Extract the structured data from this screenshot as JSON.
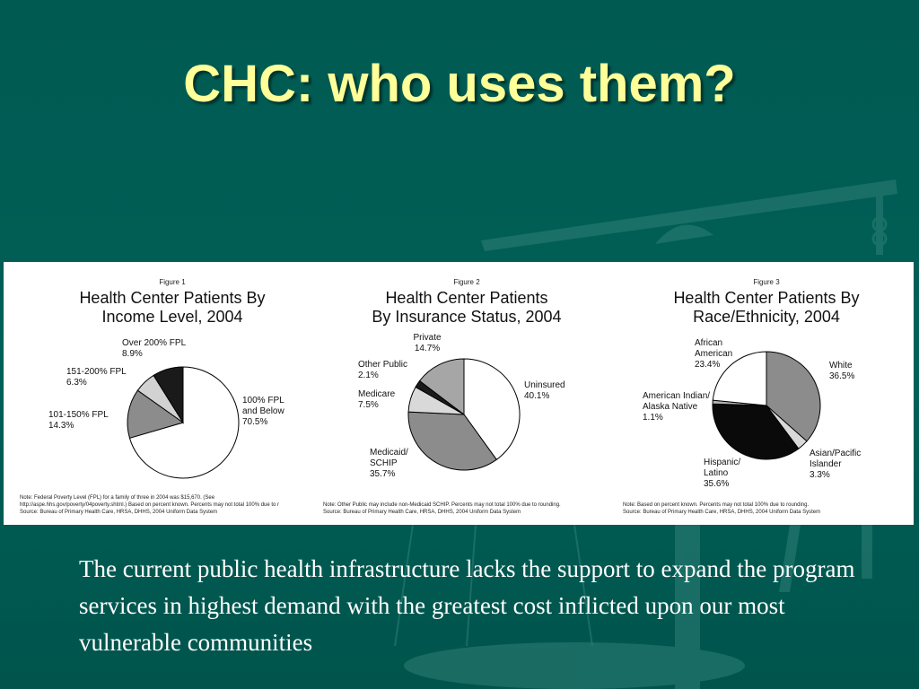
{
  "slide": {
    "title": "CHC: who uses them?",
    "body": "The current public health infrastructure lacks the support to expand the program services in highest demand with the greatest cost inflicted upon our most vulnerable communities"
  },
  "colors": {
    "background": "#006057",
    "title": "#ffff99",
    "body_text": "#ffffff",
    "panel": "#ffffff"
  },
  "chart_data": [
    {
      "type": "pie",
      "figure_label": "Figure 1",
      "title_lines": [
        "Health Center Patients By",
        "Income Level, 2004"
      ],
      "slices": [
        {
          "label_lines": [
            "100% FPL",
            "and Below",
            "70.5%"
          ],
          "value": 70.5,
          "color": "#ffffff"
        },
        {
          "label_lines": [
            "101-150% FPL",
            "14.3%"
          ],
          "value": 14.3,
          "color": "#8c8c8c"
        },
        {
          "label_lines": [
            "151-200% FPL",
            "6.3%"
          ],
          "value": 6.3,
          "color": "#d2d2d2"
        },
        {
          "label_lines": [
            "Over 200% FPL",
            "8.9%"
          ],
          "value": 8.9,
          "color": "#1a1a1a"
        }
      ],
      "notes": [
        "Note: Federal Poverty Level (FPL) for a family of three in 2004 was $15,670. (See",
        "http://aspe.hhs.gov/poverty/04poverty.shtml.) Based on percent known. Percents may not total 100% due to r",
        "Source: Bureau of Primary Health Care, HRSA, DHHS, 2004 Uniform Data System"
      ]
    },
    {
      "type": "pie",
      "figure_label": "Figure 2",
      "title_lines": [
        "Health Center Patients",
        "By Insurance Status, 2004"
      ],
      "slices": [
        {
          "label_lines": [
            "Uninsured",
            "40.1%"
          ],
          "value": 40.1,
          "color": "#ffffff"
        },
        {
          "label_lines": [
            "Medicaid/",
            "SCHIP",
            "35.7%"
          ],
          "value": 35.7,
          "color": "#8c8c8c"
        },
        {
          "label_lines": [
            "Medicare",
            "7.5%"
          ],
          "value": 7.5,
          "color": "#d9d9d9"
        },
        {
          "label_lines": [
            "Other Public",
            "2.1%"
          ],
          "value": 2.1,
          "color": "#1a1a1a"
        },
        {
          "label_lines": [
            "Private",
            "14.7%"
          ],
          "value": 14.7,
          "color": "#a6a6a6"
        }
      ],
      "notes": [
        "Note: Other Public may include non-Medicaid SCHIP. Percents may not total 100% due to rounding.",
        "Source: Bureau of Primary Health Care, HRSA, DHHS, 2004 Uniform Data System"
      ]
    },
    {
      "type": "pie",
      "figure_label": "Figure 3",
      "title_lines": [
        "Health Center Patients By",
        "Race/Ethnicity, 2004"
      ],
      "slices": [
        {
          "label_lines": [
            "White",
            "36.5%"
          ],
          "value": 36.5,
          "color": "#8c8c8c"
        },
        {
          "label_lines": [
            "Asian/Pacific",
            "Islander",
            "3.3%"
          ],
          "value": 3.3,
          "color": "#d9d9d9"
        },
        {
          "label_lines": [
            "Hispanic/",
            "Latino",
            "35.6%"
          ],
          "value": 35.6,
          "color": "#0a0a0a"
        },
        {
          "label_lines": [
            "American Indian/",
            "Alaska Native",
            "1.1%"
          ],
          "value": 1.1,
          "color": "#b3b3b3"
        },
        {
          "label_lines": [
            "African",
            "American",
            "23.4%"
          ],
          "value": 23.4,
          "color": "#ffffff"
        }
      ],
      "notes": [
        "Note: Based on percent known. Percents may not total 100% due to rounding.",
        "Source: Bureau of Primary Health Care, HRSA, DHHS, 2004 Uniform Data System"
      ]
    }
  ]
}
